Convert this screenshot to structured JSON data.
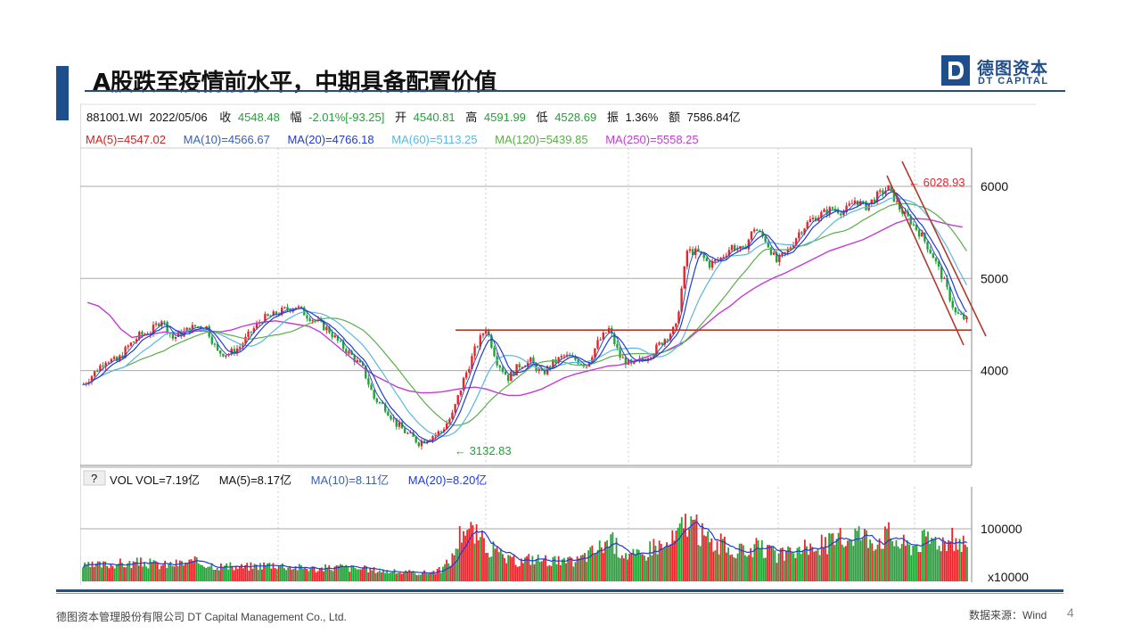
{
  "slide": {
    "title": "A股跌至疫情前水平，中期具备配置价值",
    "logo_cn": "德图资本",
    "logo_en": "DT CAPITAL",
    "footer_company": "德图资本管理股份有限公司 DT Capital Management Co., Ltd.",
    "footer_source": "数据来源：Wind",
    "page_number": "4"
  },
  "colors": {
    "brand": "#1f4e8c",
    "up": "#e8242b",
    "down": "#21a336",
    "ma5": "#000000",
    "ma10": "#2a52be",
    "ma20": "#1f3bd6",
    "ma60": "#5bb7e0",
    "ma120": "#5aae4a",
    "ma250": "#c43ad6",
    "trendline": "#b03a2e"
  },
  "header": {
    "code": "881001.WI",
    "date": "2022/05/06",
    "close_label": "收",
    "close_value": "4548.48",
    "change_label": "幅",
    "change_value": "-2.01%[-93.25]",
    "open_label": "开",
    "open_value": "4540.81",
    "high_label": "高",
    "high_value": "4591.99",
    "low_label": "低",
    "low_value": "4528.69",
    "amp_label": "振",
    "amp_value": "1.36%",
    "amount_label": "额",
    "amount_value": "7586.84亿"
  },
  "ma_legend": [
    {
      "text": "MA(5)=4547.02",
      "color": "#d22222"
    },
    {
      "text": "MA(10)=4566.67",
      "color": "#3a62a8"
    },
    {
      "text": "MA(20)=4766.18",
      "color": "#1f3bd6"
    },
    {
      "text": "MA(60)=5113.25",
      "color": "#5bb7e0"
    },
    {
      "text": "MA(120)=5439.85",
      "color": "#5aae4a"
    },
    {
      "text": "MA(250)=5558.25",
      "color": "#c43ad6"
    }
  ],
  "vol_legend": {
    "button": "?",
    "text": "VOL  VOL=7.19亿",
    "ma5": "MA(5)=8.17亿",
    "ma10": "MA(10)=8.11亿",
    "ma20": "MA(20)=8.20亿"
  },
  "chart_data": {
    "type": "line",
    "title": "",
    "instrument": "881001.WI",
    "price_axis": {
      "ticks": [
        4000,
        5000,
        6000
      ],
      "ylim": [
        3000,
        6400
      ]
    },
    "volume_axis": {
      "ticks": [
        "100000",
        "x10000"
      ],
      "unit": "x10000",
      "ylim": [
        0,
        140000
      ]
    },
    "price_series_close": [
      3850,
      3980,
      4120,
      4100,
      4260,
      4380,
      4420,
      4560,
      4350,
      4420,
      4480,
      4470,
      4200,
      4180,
      4260,
      4420,
      4560,
      4600,
      4660,
      4700,
      4600,
      4520,
      4430,
      4280,
      4160,
      4020,
      3700,
      3600,
      3420,
      3310,
      3220,
      3280,
      3340,
      3520,
      3900,
      4220,
      4470,
      4100,
      3920,
      4060,
      4100,
      3960,
      4080,
      4160,
      4120,
      4060,
      4300,
      4450,
      4150,
      4050,
      4120,
      4210,
      4350,
      4470,
      5300,
      5280,
      5150,
      5220,
      5350,
      5300,
      5550,
      5420,
      5180,
      5300,
      5500,
      5630,
      5700,
      5760,
      5720,
      5850,
      5780,
      5900,
      5980,
      5760,
      5620,
      5460,
      5240,
      4960,
      4620,
      4548
    ],
    "ma250": [
      4740,
      4700,
      4600,
      4450,
      4360,
      4380,
      4400,
      4420,
      4400,
      4420,
      4430,
      4430,
      4420,
      4440,
      4480,
      4510,
      4530,
      4540,
      4520,
      4500,
      4480,
      4420,
      4320,
      4220,
      4120,
      4020,
      3940,
      3880,
      3820,
      3780,
      3760,
      3760,
      3770,
      3790,
      3810,
      3820,
      3800,
      3760,
      3730,
      3730,
      3760,
      3800,
      3860,
      3920,
      3960,
      3990,
      4020,
      4050,
      4060,
      4090,
      4130,
      4170,
      4200,
      4260,
      4320,
      4420,
      4520,
      4620,
      4700,
      4800,
      4880,
      4950,
      5010,
      5060,
      5120,
      5180,
      5240,
      5300,
      5340,
      5380,
      5420,
      5480,
      5540,
      5600,
      5640,
      5650,
      5640,
      5610,
      5580,
      5558
    ],
    "peak": {
      "label": "6028.93",
      "value": 6028.93
    },
    "trough": {
      "label": "3132.83",
      "value": 3132.83
    },
    "support_level": 4440,
    "volume_series": [
      28000,
      30000,
      32000,
      35000,
      33000,
      36000,
      34000,
      31000,
      33000,
      35000,
      37000,
      34000,
      30000,
      28000,
      27000,
      29000,
      31000,
      33000,
      30000,
      27000,
      26000,
      24000,
      26000,
      28000,
      25000,
      24000,
      22000,
      20000,
      18000,
      17000,
      16000,
      18000,
      22000,
      45000,
      110000,
      90000,
      70000,
      55000,
      40000,
      38000,
      44000,
      42000,
      40000,
      36000,
      38000,
      50000,
      62000,
      80000,
      60000,
      50000,
      48000,
      72000,
      65000,
      85000,
      120000,
      95000,
      75000,
      70000,
      60000,
      55000,
      65000,
      58000,
      50000,
      52000,
      60000,
      62000,
      70000,
      75000,
      80000,
      95000,
      85000,
      80000,
      90000,
      72000,
      68000,
      78000,
      82000,
      76000,
      80000,
      71900
    ]
  }
}
